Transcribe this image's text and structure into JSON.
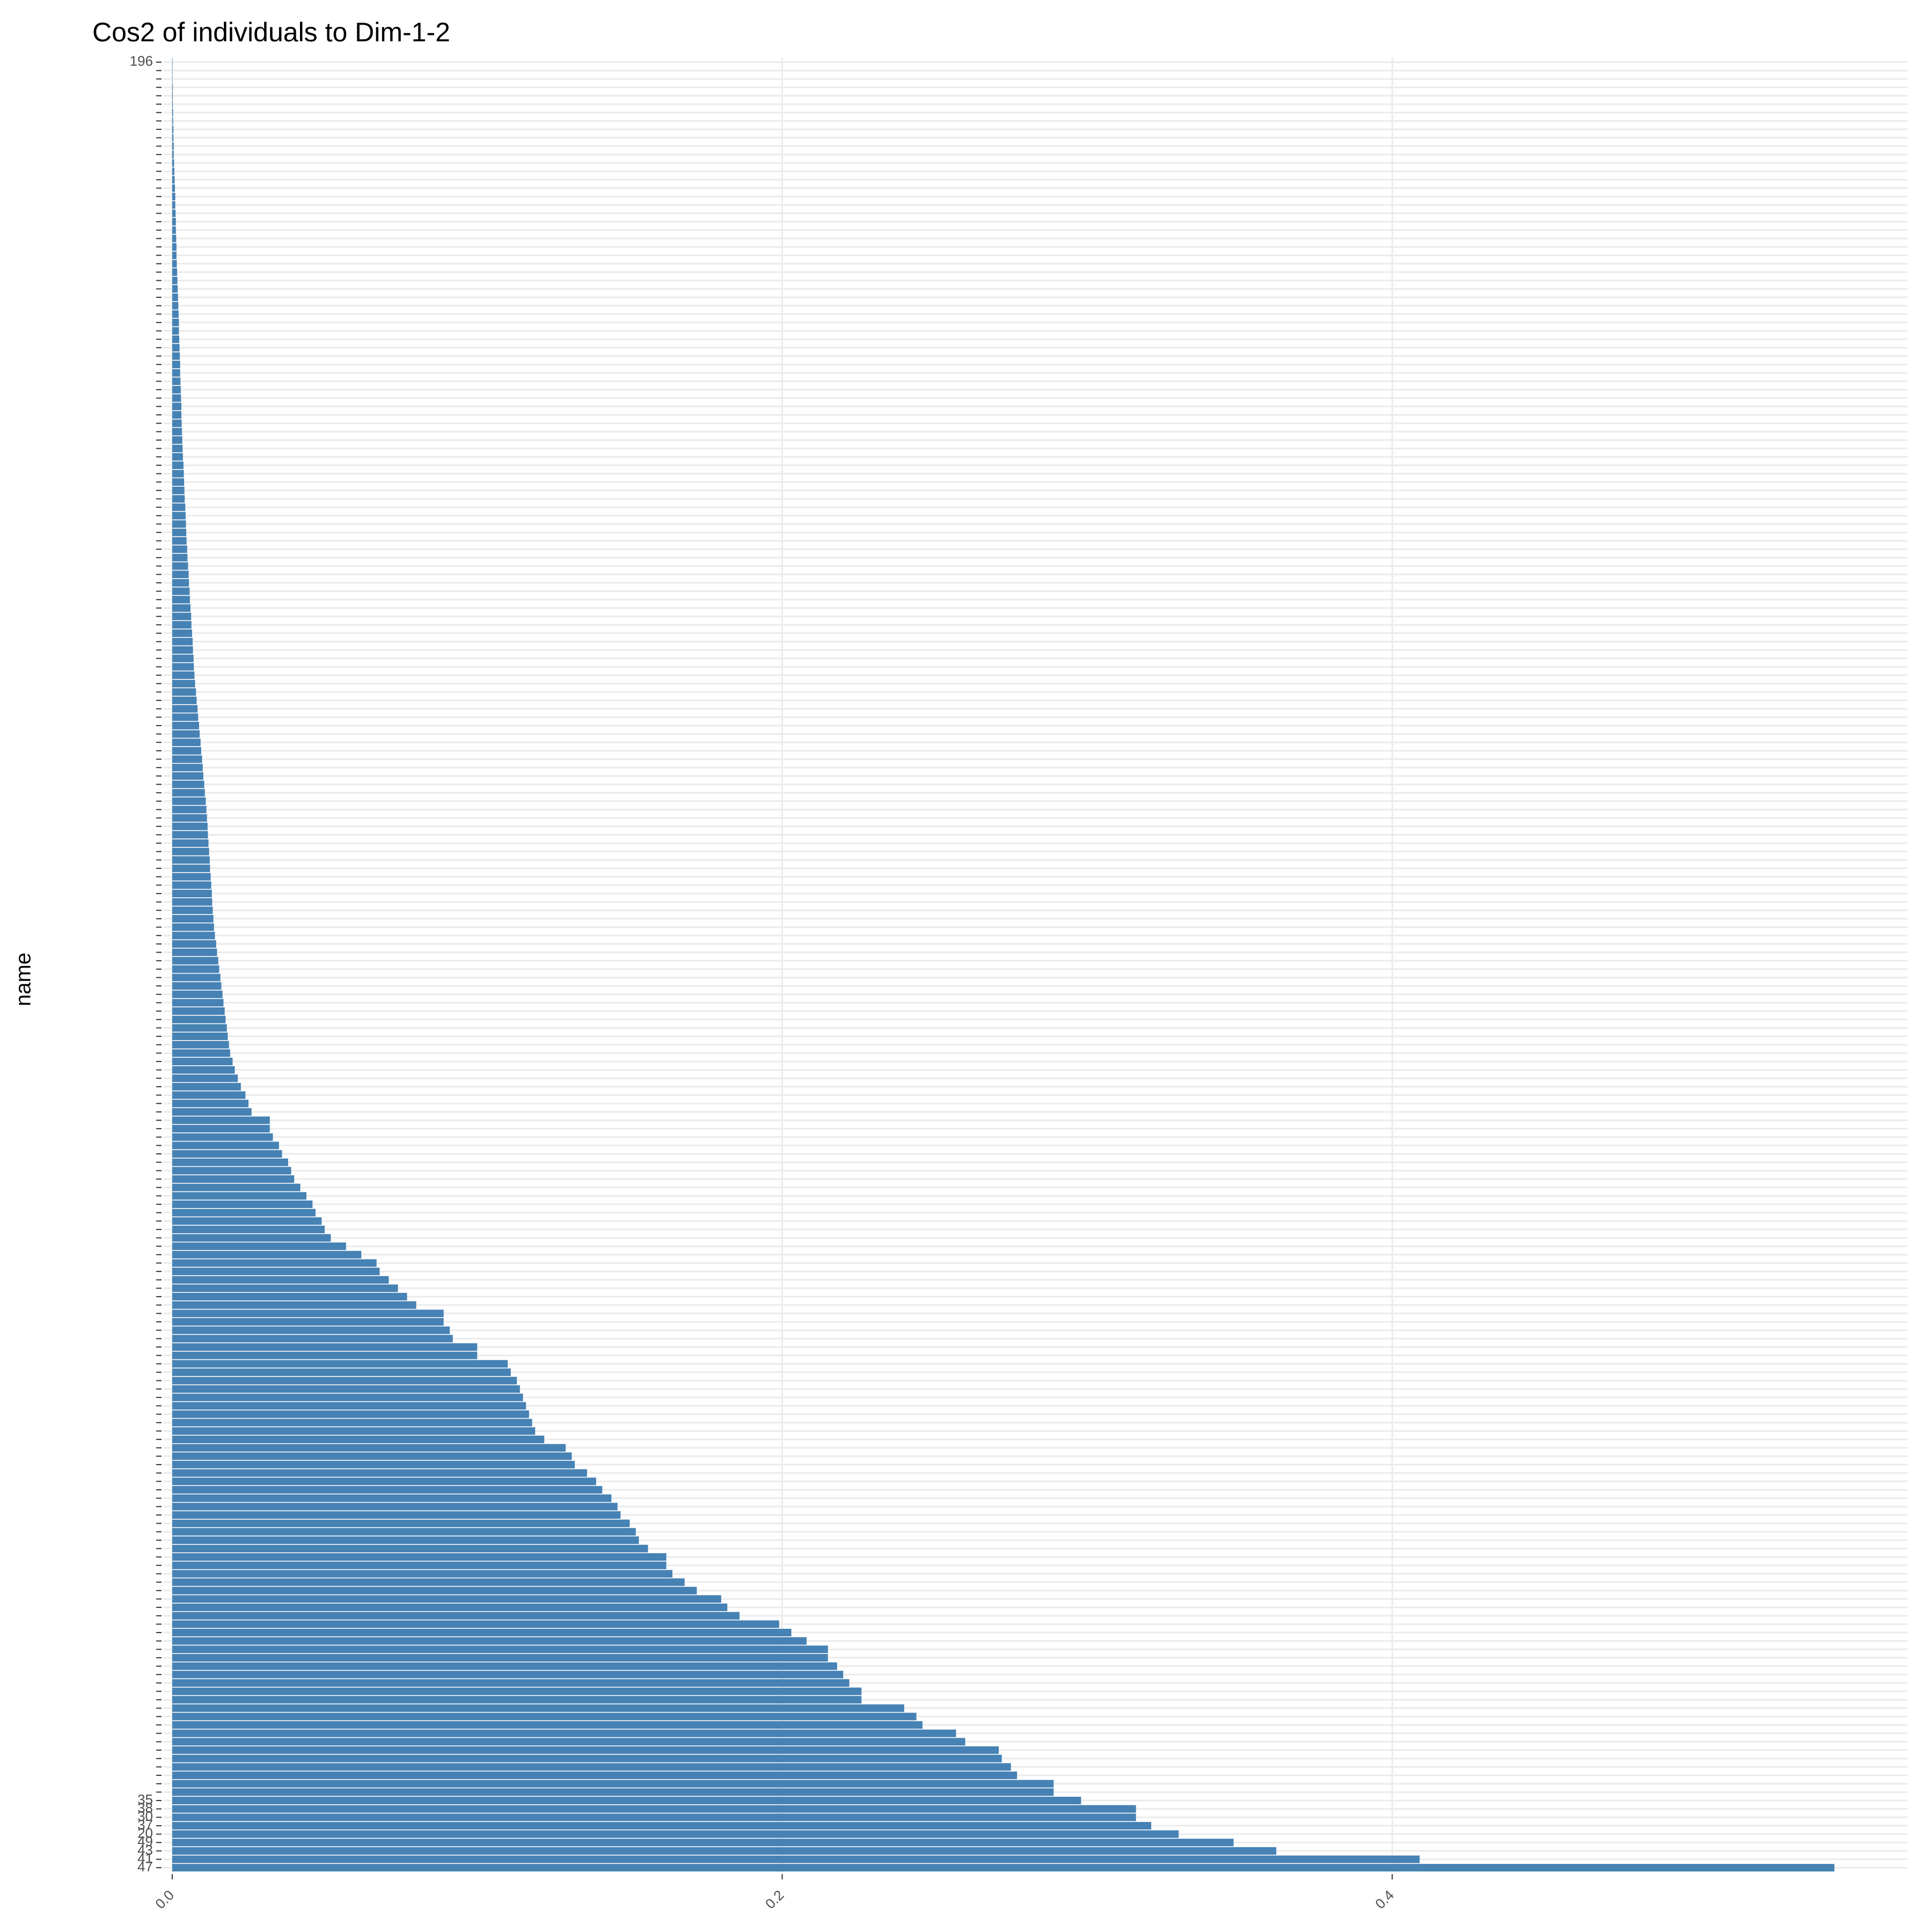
{
  "chart_data": {
    "type": "barh",
    "title": "Cos2 of individuals to Dim-1-2",
    "ylabel": "name",
    "color": "#4682b4",
    "grid": true,
    "xlim": [
      -0.0028,
      0.5689
    ],
    "xticks": [
      {
        "value": 0,
        "label": "0.0"
      },
      0.2,
      0.4
    ],
    "categories": [
      "196",
      null,
      null,
      null,
      null,
      null,
      null,
      null,
      null,
      null,
      null,
      null,
      null,
      null,
      null,
      null,
      null,
      null,
      null,
      null,
      null,
      null,
      null,
      null,
      null,
      null,
      null,
      null,
      null,
      null,
      null,
      null,
      null,
      null,
      null,
      null,
      null,
      null,
      null,
      null,
      null,
      null,
      null,
      null,
      null,
      null,
      null,
      null,
      null,
      null,
      null,
      null,
      null,
      null,
      null,
      null,
      null,
      null,
      null,
      null,
      null,
      null,
      null,
      null,
      null,
      null,
      null,
      null,
      null,
      null,
      null,
      null,
      null,
      null,
      null,
      null,
      null,
      null,
      null,
      null,
      null,
      null,
      null,
      null,
      null,
      null,
      null,
      null,
      null,
      null,
      null,
      null,
      null,
      null,
      null,
      null,
      null,
      null,
      null,
      null,
      null,
      null,
      null,
      null,
      null,
      null,
      null,
      null,
      null,
      null,
      null,
      null,
      null,
      null,
      null,
      null,
      null,
      null,
      null,
      null,
      null,
      null,
      null,
      null,
      null,
      null,
      null,
      null,
      null,
      null,
      null,
      null,
      null,
      null,
      null,
      null,
      null,
      null,
      null,
      null,
      null,
      null,
      null,
      null,
      null,
      null,
      null,
      null,
      null,
      null,
      null,
      null,
      null,
      null,
      null,
      null,
      null,
      null,
      null,
      null,
      null,
      null,
      null,
      null,
      null,
      null,
      null,
      null,
      null,
      null,
      null,
      null,
      null,
      null,
      null,
      null,
      null,
      null,
      null,
      null,
      null,
      null,
      null,
      null,
      null,
      null,
      null,
      null,
      null,
      null,
      null,
      null,
      null,
      null,
      null,
      null,
      null,
      null,
      null,
      null,
      null,
      null,
      null,
      null,
      null,
      null,
      null,
      "35",
      "38",
      "30",
      "37",
      "20",
      "49",
      "43",
      "41",
      "47"
    ],
    "values": [
      0.0001,
      0.0001,
      0.0001,
      0.0002,
      0.0002,
      0.0002,
      0.0003,
      0.0003,
      0.0004,
      0.0004,
      0.0005,
      0.0005,
      0.0006,
      0.0007,
      0.0008,
      0.0009,
      0.001,
      0.001,
      0.0011,
      0.0012,
      0.0012,
      0.0013,
      0.0014,
      0.0014,
      0.0015,
      0.0016,
      0.0017,
      0.0018,
      0.0019,
      0.002,
      0.0021,
      0.0022,
      0.0022,
      0.0023,
      0.0024,
      0.0025,
      0.0026,
      0.0026,
      0.0027,
      0.0028,
      0.0029,
      0.003,
      0.003,
      0.0031,
      0.0032,
      0.0033,
      0.0034,
      0.0035,
      0.0037,
      0.0038,
      0.0039,
      0.004,
      0.0041,
      0.0043,
      0.0044,
      0.0045,
      0.0046,
      0.0047,
      0.0049,
      0.005,
      0.0052,
      0.0054,
      0.0055,
      0.0057,
      0.0058,
      0.006,
      0.0062,
      0.0063,
      0.0065,
      0.0067,
      0.0068,
      0.007,
      0.0071,
      0.0073,
      0.0075,
      0.0078,
      0.008,
      0.0083,
      0.0085,
      0.0088,
      0.009,
      0.0093,
      0.0095,
      0.0098,
      0.01,
      0.0102,
      0.0105,
      0.0107,
      0.011,
      0.0112,
      0.0114,
      0.0116,
      0.0117,
      0.0119,
      0.0121,
      0.0123,
      0.0124,
      0.0126,
      0.0128,
      0.013,
      0.0131,
      0.0133,
      0.0135,
      0.0137,
      0.014,
      0.0144,
      0.0147,
      0.0151,
      0.0154,
      0.0158,
      0.0161,
      0.0165,
      0.0168,
      0.0172,
      0.0175,
      0.0179,
      0.0182,
      0.0186,
      0.019,
      0.0198,
      0.0205,
      0.0215,
      0.0225,
      0.024,
      0.025,
      0.026,
      0.032,
      0.032,
      0.033,
      0.035,
      0.036,
      0.038,
      0.039,
      0.04,
      0.042,
      0.044,
      0.046,
      0.047,
      0.049,
      0.05,
      0.052,
      0.057,
      0.062,
      0.067,
      0.068,
      0.071,
      0.074,
      0.077,
      0.08,
      0.089,
      0.089,
      0.091,
      0.092,
      0.1,
      0.1,
      0.11,
      0.111,
      0.113,
      0.114,
      0.115,
      0.116,
      0.117,
      0.118,
      0.119,
      0.122,
      0.129,
      0.131,
      0.132,
      0.136,
      0.139,
      0.141,
      0.144,
      0.146,
      0.147,
      0.15,
      0.152,
      0.153,
      0.156,
      0.162,
      0.162,
      0.164,
      0.168,
      0.172,
      0.18,
      0.182,
      0.186,
      0.199,
      0.203,
      0.208,
      0.215,
      0.215,
      0.218,
      0.22,
      0.222,
      0.226,
      0.226,
      0.24,
      0.244,
      0.246,
      0.257,
      0.26,
      0.271,
      0.272,
      0.275,
      0.277,
      0.289,
      0.289,
      0.298,
      0.316,
      0.316,
      0.321,
      0.33,
      0.348,
      0.362,
      0.409,
      0.545
    ]
  }
}
